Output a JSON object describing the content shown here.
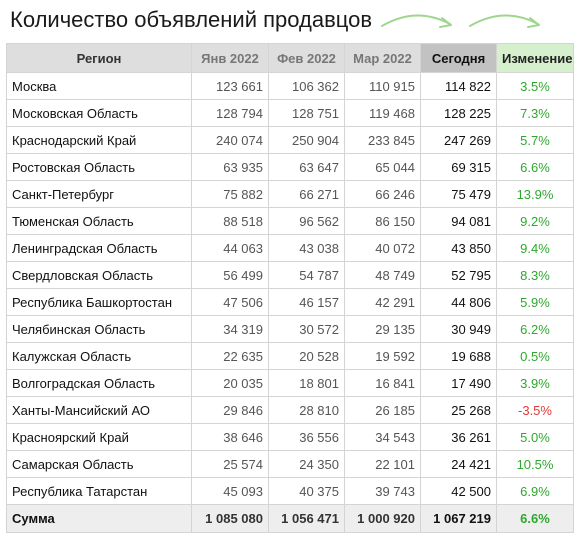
{
  "title": "Количество объявлений продавцов",
  "headers": {
    "region": "Регион",
    "jan": "Янв 2022",
    "feb": "Фев 2022",
    "mar": "Мар 2022",
    "today": "Сегодня",
    "change": "Изменение"
  },
  "rows": [
    {
      "region": "Москва",
      "jan": "123 661",
      "feb": "106 362",
      "mar": "110 915",
      "today": "114 822",
      "change": "3.5%"
    },
    {
      "region": "Московская Область",
      "jan": "128 794",
      "feb": "128 751",
      "mar": "119 468",
      "today": "128 225",
      "change": "7.3%"
    },
    {
      "region": "Краснодарский Край",
      "jan": "240 074",
      "feb": "250 904",
      "mar": "233 845",
      "today": "247 269",
      "change": "5.7%"
    },
    {
      "region": "Ростовская Область",
      "jan": "63 935",
      "feb": "63 647",
      "mar": "65 044",
      "today": "69 315",
      "change": "6.6%"
    },
    {
      "region": "Санкт-Петербург",
      "jan": "75 882",
      "feb": "66 271",
      "mar": "66 246",
      "today": "75 479",
      "change": "13.9%"
    },
    {
      "region": "Тюменская Область",
      "jan": "88 518",
      "feb": "96 562",
      "mar": "86 150",
      "today": "94 081",
      "change": "9.2%"
    },
    {
      "region": "Ленинградская Область",
      "jan": "44 063",
      "feb": "43 038",
      "mar": "40 072",
      "today": "43 850",
      "change": "9.4%"
    },
    {
      "region": "Свердловская Область",
      "jan": "56 499",
      "feb": "54 787",
      "mar": "48 749",
      "today": "52 795",
      "change": "8.3%"
    },
    {
      "region": "Республика Башкортостан",
      "jan": "47 506",
      "feb": "46 157",
      "mar": "42 291",
      "today": "44 806",
      "change": "5.9%"
    },
    {
      "region": "Челябинская Область",
      "jan": "34 319",
      "feb": "30 572",
      "mar": "29 135",
      "today": "30 949",
      "change": "6.2%"
    },
    {
      "region": "Калужская Область",
      "jan": "22 635",
      "feb": "20 528",
      "mar": "19 592",
      "today": "19 688",
      "change": "0.5%"
    },
    {
      "region": "Волгоградская Область",
      "jan": "20 035",
      "feb": "18 801",
      "mar": "16 841",
      "today": "17 490",
      "change": "3.9%"
    },
    {
      "region": "Ханты-Мансийский АО",
      "jan": "29 846",
      "feb": "28 810",
      "mar": "26 185",
      "today": "25 268",
      "change": "-3.5%"
    },
    {
      "region": "Красноярский Край",
      "jan": "38 646",
      "feb": "36 556",
      "mar": "34 543",
      "today": "36 261",
      "change": "5.0%"
    },
    {
      "region": "Самарская Область",
      "jan": "25 574",
      "feb": "24 350",
      "mar": "22 101",
      "today": "24 421",
      "change": "10.5%"
    },
    {
      "region": "Республика Татарстан",
      "jan": "45 093",
      "feb": "40 375",
      "mar": "39 743",
      "today": "42 500",
      "change": "6.9%"
    }
  ],
  "total": {
    "region": "Сумма",
    "jan": "1 085 080",
    "feb": "1 056 471",
    "mar": "1 000 920",
    "today": "1 067 219",
    "change": "6.6%"
  },
  "colors": {
    "positive": "#2ea82e",
    "negative": "#e23a3a",
    "accent_arrows": "#9fd68f",
    "change_header_bg": "#d6efcc",
    "today_header_bg": "#c2c2c2"
  },
  "icons": {
    "decor": "curved-arrow-icon"
  }
}
